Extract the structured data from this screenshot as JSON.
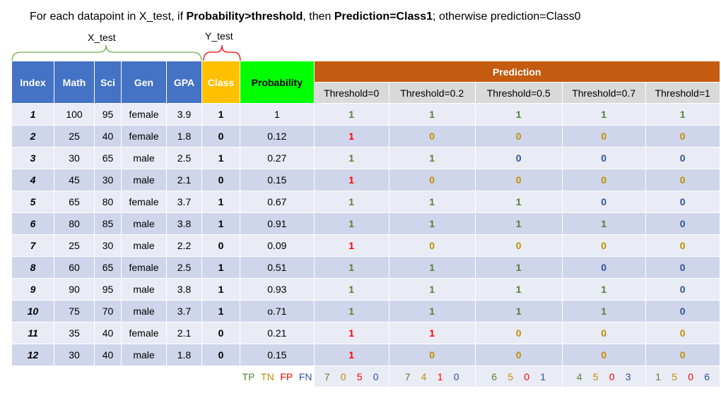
{
  "title": {
    "part1": "For each datapoint in X_test, if ",
    "bold1": "Probability>threshold",
    "part2": ", then ",
    "bold2": "Prediction=Class1",
    "part3": "; otherwise prediction=Class0"
  },
  "labels": {
    "x_test": "X_test",
    "y_test": "Y_test"
  },
  "headers": {
    "index": "Index",
    "math": "Math",
    "sci": "Sci",
    "gen": "Gen",
    "gpa": "GPA",
    "class": "Class",
    "probability": "Probability",
    "prediction": "Prediction",
    "thresholds": [
      "Threshold=0",
      "Threshold=0.2",
      "Threshold=0.5",
      "Threshold=0.7",
      "Threshold=1"
    ]
  },
  "rows": [
    {
      "index": "1",
      "math": "100",
      "sci": "95",
      "gen": "female",
      "gpa": "3.9",
      "cls": "1",
      "prob": "1",
      "preds": [
        "1",
        "1",
        "1",
        "1",
        "1"
      ],
      "types": [
        "tp",
        "tp",
        "tp",
        "tp",
        "tp"
      ]
    },
    {
      "index": "2",
      "math": "25",
      "sci": "40",
      "gen": "female",
      "gpa": "1.8",
      "cls": "0",
      "prob": "0.12",
      "preds": [
        "1",
        "0",
        "0",
        "0",
        "0"
      ],
      "types": [
        "fp",
        "tn",
        "tn",
        "tn",
        "tn"
      ]
    },
    {
      "index": "3",
      "math": "30",
      "sci": "65",
      "gen": "male",
      "gpa": "2.5",
      "cls": "1",
      "prob": "0.27",
      "preds": [
        "1",
        "1",
        "0",
        "0",
        "0"
      ],
      "types": [
        "tp",
        "tp",
        "fn",
        "fn",
        "fn"
      ]
    },
    {
      "index": "4",
      "math": "45",
      "sci": "30",
      "gen": "male",
      "gpa": "2.1",
      "cls": "0",
      "prob": "0.15",
      "preds": [
        "1",
        "0",
        "0",
        "0",
        "0"
      ],
      "types": [
        "fp",
        "tn",
        "tn",
        "tn",
        "tn"
      ]
    },
    {
      "index": "5",
      "math": "65",
      "sci": "80",
      "gen": "female",
      "gpa": "3.7",
      "cls": "1",
      "prob": "0.67",
      "preds": [
        "1",
        "1",
        "1",
        "0",
        "0"
      ],
      "types": [
        "tp",
        "tp",
        "tp",
        "fn",
        "fn"
      ]
    },
    {
      "index": "6",
      "math": "80",
      "sci": "85",
      "gen": "male",
      "gpa": "3.8",
      "cls": "1",
      "prob": "0.91",
      "preds": [
        "1",
        "1",
        "1",
        "1",
        "0"
      ],
      "types": [
        "tp",
        "tp",
        "tp",
        "tp",
        "fn"
      ]
    },
    {
      "index": "7",
      "math": "25",
      "sci": "30",
      "gen": "male",
      "gpa": "2.2",
      "cls": "0",
      "prob": "0.09",
      "preds": [
        "1",
        "0",
        "0",
        "0",
        "0"
      ],
      "types": [
        "fp",
        "tn",
        "tn",
        "tn",
        "tn"
      ]
    },
    {
      "index": "8",
      "math": "60",
      "sci": "65",
      "gen": "female",
      "gpa": "2.5",
      "cls": "1",
      "prob": "0.51",
      "preds": [
        "1",
        "1",
        "1",
        "0",
        "0"
      ],
      "types": [
        "tp",
        "tp",
        "tp",
        "fn",
        "fn"
      ]
    },
    {
      "index": "9",
      "math": "90",
      "sci": "95",
      "gen": "male",
      "gpa": "3.8",
      "cls": "1",
      "prob": "0.93",
      "preds": [
        "1",
        "1",
        "1",
        "1",
        "0"
      ],
      "types": [
        "tp",
        "tp",
        "tp",
        "tp",
        "fn"
      ]
    },
    {
      "index": "10",
      "math": "75",
      "sci": "70",
      "gen": "male",
      "gpa": "3.7",
      "cls": "1",
      "prob": "o.71",
      "preds": [
        "1",
        "1",
        "1",
        "1",
        "0"
      ],
      "types": [
        "tp",
        "tp",
        "tp",
        "tp",
        "fn"
      ]
    },
    {
      "index": "11",
      "math": "35",
      "sci": "40",
      "gen": "female",
      "gpa": "2.1",
      "cls": "0",
      "prob": "0.21",
      "preds": [
        "1",
        "1",
        "0",
        "0",
        "0"
      ],
      "types": [
        "fp",
        "fp",
        "tn",
        "tn",
        "tn"
      ]
    },
    {
      "index": "12",
      "math": "30",
      "sci": "40",
      "gen": "male",
      "gpa": "1.8",
      "cls": "0",
      "prob": "0.15",
      "preds": [
        "1",
        "0",
        "0",
        "0",
        "0"
      ],
      "types": [
        "fp",
        "tn",
        "tn",
        "tn",
        "tn"
      ]
    }
  ],
  "metric_labels": [
    "TP",
    "TN",
    "FP",
    "FN"
  ],
  "metrics": [
    [
      "7",
      "0",
      "5",
      "0"
    ],
    [
      "7",
      "4",
      "1",
      "0"
    ],
    [
      "6",
      "5",
      "0",
      "1"
    ],
    [
      "4",
      "5",
      "0",
      "3"
    ],
    [
      "1",
      "5",
      "0",
      "6"
    ]
  ],
  "colors": {
    "tp": "#548235",
    "tn": "#bf9000",
    "fp": "#ff0000",
    "fn": "#2e5597",
    "blue_header": "#4472c4",
    "class_header": "#ffc000",
    "prob_header": "#00ff00",
    "pred_header": "#c55a11",
    "brace_green": "#70ad47",
    "brace_red": "#ff0000"
  }
}
